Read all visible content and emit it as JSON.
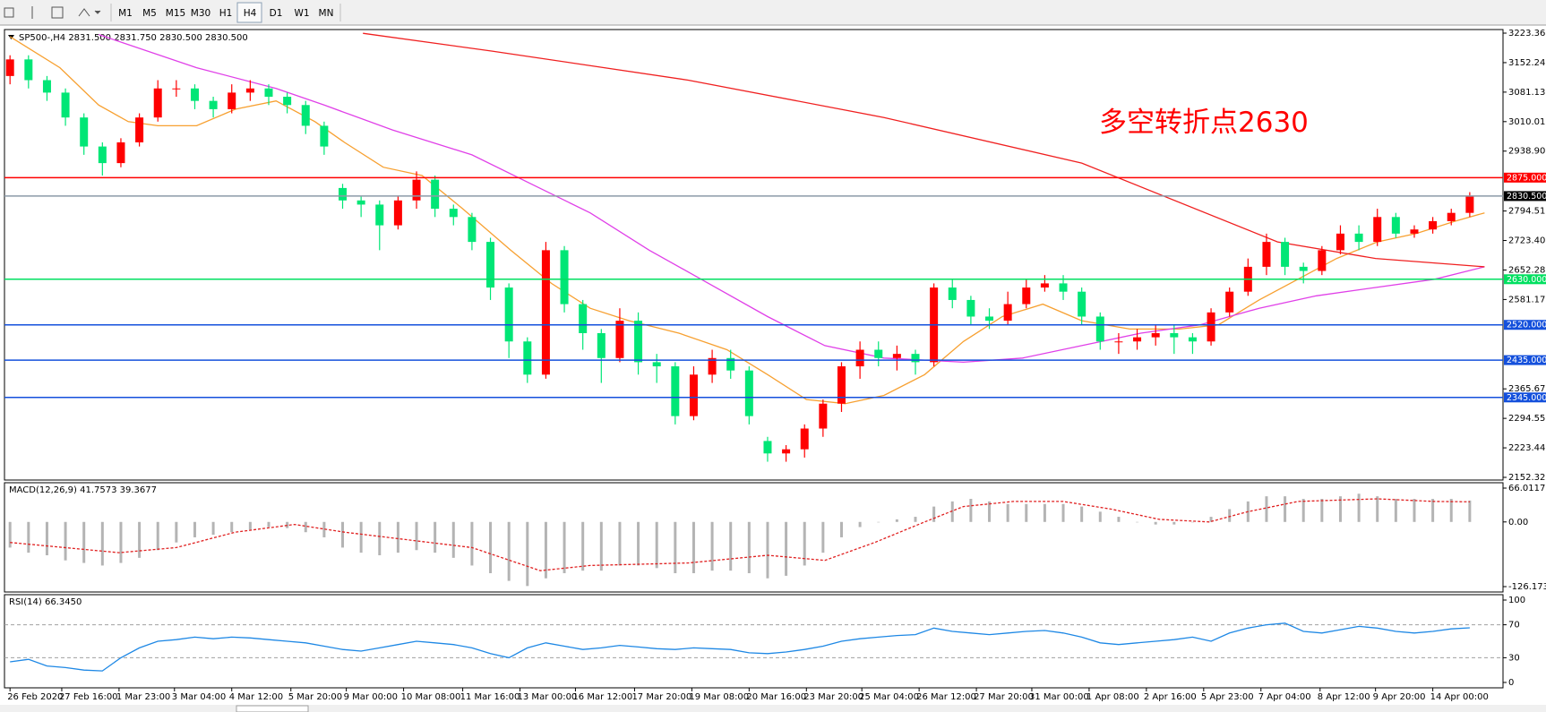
{
  "toolbar": {
    "timeframes": [
      "M1",
      "M5",
      "M15",
      "M30",
      "H1",
      "H4",
      "D1",
      "W1",
      "MN"
    ]
  },
  "chart_data": [
    {
      "type": "candlestick",
      "title": "SP500-,H4 2831.500 2831.750 2830.500 2830.500",
      "annotation": "多空转折点2630",
      "up_color": "#ff0000",
      "down_color": "#00e676",
      "xlim": [
        -0.3,
        80.8
      ],
      "xticks": [
        {
          "value": 0,
          "label": "26 Feb 2020"
        },
        {
          "value": 2.8,
          "label": "27 Feb 16:00"
        },
        {
          "value": 5.9,
          "label": "1 Mar 23:00"
        },
        {
          "value": 8.9,
          "label": "3 Mar 04:00"
        },
        {
          "value": 12,
          "label": "4 Mar 12:00"
        },
        {
          "value": 15.2,
          "label": "5 Mar 20:00"
        },
        {
          "value": 18.2,
          "label": "9 Mar 00:00"
        },
        {
          "value": 21.3,
          "label": "10 Mar 08:00"
        },
        {
          "value": 24.5,
          "label": "11 Mar 16:00"
        },
        {
          "value": 27.6,
          "label": "13 Mar 00:00"
        },
        {
          "value": 30.6,
          "label": "16 Mar 12:00"
        },
        {
          "value": 33.8,
          "label": "17 Mar 20:00"
        },
        {
          "value": 36.9,
          "label": "19 Mar 08:00"
        },
        {
          "value": 40,
          "label": "20 Mar 16:00"
        },
        {
          "value": 43.1,
          "label": "23 Mar 20:00"
        },
        {
          "value": 46.1,
          "label": "25 Mar 04:00"
        },
        {
          "value": 49.2,
          "label": "26 Mar 12:00"
        },
        {
          "value": 52.3,
          "label": "27 Mar 20:00"
        },
        {
          "value": 55.3,
          "label": "31 Mar 00:00"
        },
        {
          "value": 58.4,
          "label": "1 Apr 08:00"
        },
        {
          "value": 61.5,
          "label": "2 Apr 16:00"
        },
        {
          "value": 64.6,
          "label": "5 Apr 23:00"
        },
        {
          "value": 67.7,
          "label": "7 Apr 04:00"
        },
        {
          "value": 70.9,
          "label": "8 Apr 12:00"
        },
        {
          "value": 73.9,
          "label": "9 Apr 20:00"
        },
        {
          "value": 77,
          "label": "14 Apr 00:00"
        }
      ],
      "ylim": [
        2152.325,
        3223.36
      ],
      "yticks": [
        {
          "value": 3223.36,
          "label": "3223.360"
        },
        3152.245,
        {
          "value": 3081.13,
          "label": "3081.130"
        },
        3010.015,
        {
          "value": 2938.9,
          "label": "2938.900"
        },
        2794.515,
        {
          "value": 2723.4,
          "label": "2723.400"
        },
        2652.285,
        {
          "value": 2581.17,
          "label": "2581.170"
        },
        {
          "value": 2365.67,
          "label": "2365.670"
        },
        2294.555,
        {
          "value": 2223.44,
          "label": "2223.440"
        },
        2152.325
      ],
      "levels": [
        {
          "value": 2875,
          "label": "2875.000",
          "color": "#ff0000"
        },
        {
          "value": 2830.5,
          "label": "2830.500",
          "color": "#000000",
          "line_color": "#8c9aa8"
        },
        {
          "value": 2630,
          "label": "2630.000",
          "color": "#00e060"
        },
        {
          "value": 2520,
          "label": "2520.000",
          "color": "#1450dc"
        },
        {
          "value": 2435,
          "label": "2435.000",
          "color": "#1450dc"
        },
        {
          "value": 2345,
          "label": "2345.000",
          "color": "#1450dc"
        }
      ],
      "x": [
        0,
        1,
        2,
        3,
        4,
        5,
        6,
        7,
        8,
        9,
        10,
        11,
        12,
        13,
        14,
        15,
        16,
        17,
        18,
        19,
        20,
        21,
        22,
        23,
        24,
        25,
        26,
        27,
        28,
        29,
        30,
        31,
        32,
        33,
        34,
        35,
        36,
        37,
        38,
        39,
        40,
        41,
        42,
        43,
        44,
        45,
        46,
        47,
        48,
        49,
        50,
        51,
        52,
        53,
        54,
        55,
        56,
        57,
        58,
        59,
        60,
        61,
        62,
        63,
        64,
        65,
        66,
        67,
        68,
        69,
        70,
        71,
        72,
        73,
        74,
        75,
        76,
        77,
        78,
        79
      ],
      "open": [
        3120,
        3160,
        3110,
        3080,
        3020,
        2950,
        2910,
        2960,
        3020,
        3090,
        3090,
        3060,
        3040,
        3080,
        3090,
        3070,
        3050,
        3000,
        2850,
        2820,
        2810,
        2760,
        2820,
        2870,
        2800,
        2780,
        2720,
        2610,
        2480,
        2400,
        2700,
        2570,
        2500,
        2440,
        2530,
        2430,
        2420,
        2300,
        2400,
        2440,
        2410,
        2240,
        2210,
        2220,
        2270,
        2330,
        2420,
        2460,
        2440,
        2450,
        2430,
        2610,
        2580,
        2540,
        2530,
        2570,
        2610,
        2620,
        2600,
        2540,
        2480,
        2480,
        2490,
        2500,
        2490,
        2480,
        2550,
        2600,
        2660,
        2720,
        2660,
        2650,
        2700,
        2740,
        2720,
        2780,
        2740,
        2750,
        2770,
        2790
      ],
      "high": [
        3170,
        3170,
        3120,
        3090,
        3030,
        2960,
        2970,
        3030,
        3110,
        3110,
        3100,
        3070,
        3100,
        3110,
        3100,
        3080,
        3060,
        3010,
        2860,
        2830,
        2820,
        2830,
        2890,
        2880,
        2810,
        2790,
        2730,
        2620,
        2490,
        2720,
        2710,
        2580,
        2510,
        2560,
        2550,
        2450,
        2430,
        2420,
        2460,
        2460,
        2420,
        2250,
        2230,
        2280,
        2340,
        2430,
        2480,
        2480,
        2470,
        2460,
        2620,
        2630,
        2590,
        2560,
        2600,
        2630,
        2640,
        2640,
        2610,
        2550,
        2500,
        2510,
        2520,
        2520,
        2500,
        2560,
        2610,
        2680,
        2740,
        2730,
        2670,
        2710,
        2760,
        2760,
        2800,
        2790,
        2760,
        2780,
        2800,
        2840
      ],
      "low": [
        3100,
        3090,
        3060,
        3000,
        2930,
        2880,
        2900,
        2950,
        3010,
        3070,
        3040,
        3020,
        3030,
        3060,
        3050,
        3030,
        2980,
        2930,
        2800,
        2780,
        2700,
        2750,
        2800,
        2780,
        2760,
        2700,
        2580,
        2440,
        2380,
        2390,
        2550,
        2460,
        2380,
        2430,
        2400,
        2380,
        2280,
        2290,
        2380,
        2390,
        2280,
        2190,
        2190,
        2200,
        2250,
        2310,
        2390,
        2420,
        2410,
        2400,
        2420,
        2560,
        2520,
        2510,
        2520,
        2560,
        2600,
        2580,
        2520,
        2460,
        2450,
        2460,
        2470,
        2450,
        2450,
        2470,
        2540,
        2590,
        2640,
        2640,
        2620,
        2640,
        2690,
        2700,
        2710,
        2730,
        2730,
        2740,
        2760,
        2780
      ],
      "close": [
        3160,
        3110,
        3080,
        3020,
        2950,
        2910,
        2960,
        3020,
        3090,
        3090,
        3060,
        3040,
        3080,
        3090,
        3070,
        3050,
        3000,
        2950,
        2820,
        2810,
        2760,
        2820,
        2870,
        2800,
        2780,
        2720,
        2610,
        2480,
        2400,
        2700,
        2570,
        2500,
        2440,
        2530,
        2430,
        2420,
        2300,
        2400,
        2440,
        2410,
        2300,
        2210,
        2220,
        2270,
        2330,
        2420,
        2460,
        2440,
        2450,
        2430,
        2610,
        2580,
        2540,
        2530,
        2570,
        2610,
        2620,
        2600,
        2540,
        2480,
        2480,
        2490,
        2500,
        2490,
        2480,
        2550,
        2600,
        2660,
        2720,
        2660,
        2650,
        2700,
        2740,
        2720,
        2780,
        2740,
        2750,
        2770,
        2790,
        2830
      ],
      "lines": [
        {
          "color": "#f7a030",
          "x": [
            0,
            2.7,
            4.8,
            6.4,
            8,
            10.1,
            12.2,
            14.4,
            16.5,
            18.1,
            20.2,
            22.3,
            24.5,
            27.1,
            29.3,
            31.4,
            33.5,
            36.2,
            38.8,
            41,
            43.1,
            45.2,
            47.3,
            49.5,
            51.6,
            53.7,
            55.9,
            58,
            60.6,
            63.3,
            65.4,
            67.6,
            69.7,
            71.8,
            74,
            76.1,
            78.2,
            79.8
          ],
          "values": [
            3215,
            3140,
            3050,
            3010,
            3000,
            3000,
            3040,
            3060,
            3010,
            2960,
            2900,
            2880,
            2800,
            2700,
            2620,
            2560,
            2530,
            2500,
            2460,
            2400,
            2340,
            2330,
            2350,
            2400,
            2480,
            2540,
            2570,
            2530,
            2510,
            2510,
            2520,
            2580,
            2630,
            2680,
            2720,
            2740,
            2770,
            2790
          ]
        },
        {
          "color": "#e040e8",
          "x": [
            4.8,
            10.1,
            14.4,
            17,
            20.7,
            25,
            28.2,
            31.4,
            34.6,
            37.8,
            41,
            44.1,
            47.3,
            49.5,
            51.6,
            54.8,
            58,
            61.2,
            64.4,
            67.6,
            70.7,
            73.9,
            77.1,
            79.8
          ],
          "values": [
            3220,
            3140,
            3090,
            3050,
            2990,
            2930,
            2860,
            2790,
            2700,
            2620,
            2540,
            2470,
            2440,
            2435,
            2430,
            2440,
            2470,
            2500,
            2520,
            2560,
            2590,
            2610,
            2630,
            2660
          ]
        },
        {
          "color": "#f02020",
          "x": [
            19.1,
            26.1,
            36.7,
            47.3,
            58,
            68.6,
            73.9,
            79.8
          ],
          "values": [
            3223,
            3180,
            3110,
            3020,
            2910,
            2720,
            2680,
            2660
          ]
        }
      ]
    },
    {
      "type": "bar",
      "title": "MACD(12,26,9) 41.7573 39.3677",
      "color": "#b4b4b4",
      "ylim": [
        -126.173,
        66.0117
      ],
      "yticks": [
        66.0117,
        {
          "value": 0,
          "label": "0.00"
        },
        -126.173
      ],
      "x": [
        0,
        1,
        2,
        3,
        4,
        5,
        6,
        7,
        8,
        9,
        10,
        11,
        12,
        13,
        14,
        15,
        16,
        17,
        18,
        19,
        20,
        21,
        22,
        23,
        24,
        25,
        26,
        27,
        28,
        29,
        30,
        31,
        32,
        33,
        34,
        35,
        36,
        37,
        38,
        39,
        40,
        41,
        42,
        43,
        44,
        45,
        46,
        47,
        48,
        49,
        50,
        51,
        52,
        53,
        54,
        55,
        56,
        57,
        58,
        59,
        60,
        61,
        62,
        63,
        64,
        65,
        66,
        67,
        68,
        69,
        70,
        71,
        72,
        73,
        74,
        75,
        76,
        77,
        78,
        79
      ],
      "values": [
        -50,
        -60,
        -65,
        -75,
        -80,
        -85,
        -80,
        -70,
        -55,
        -40,
        -30,
        -25,
        -20,
        -15,
        -10,
        -12,
        -20,
        -30,
        -50,
        -60,
        -65,
        -60,
        -55,
        -60,
        -70,
        -85,
        -100,
        -115,
        -125,
        -110,
        -100,
        -95,
        -95,
        -85,
        -85,
        -90,
        -100,
        -100,
        -95,
        -95,
        -100,
        -110,
        -105,
        -85,
        -60,
        -30,
        -10,
        0,
        5,
        10,
        30,
        40,
        45,
        40,
        35,
        35,
        35,
        35,
        30,
        20,
        10,
        0,
        -5,
        -5,
        0,
        10,
        25,
        40,
        50,
        50,
        45,
        45,
        50,
        55,
        50,
        45,
        45,
        45,
        45,
        41.7573
      ],
      "lines": [
        {
          "color": "#e02020",
          "x": [
            0,
            5.9,
            9,
            12.2,
            15.4,
            18.1,
            25,
            28.7,
            31.4,
            36.7,
            41,
            44.1,
            46.8,
            49.5,
            51.6,
            54.3,
            57,
            59.6,
            62.2,
            64.9,
            67,
            69.7,
            74,
            77.1,
            79
          ],
          "values": [
            -40,
            -60,
            -50,
            -20,
            -5,
            -20,
            -50,
            -95,
            -85,
            -80,
            -65,
            -75,
            -40,
            0,
            30,
            40,
            40,
            25,
            5,
            0,
            20,
            40,
            45,
            40,
            39.3677
          ]
        }
      ]
    },
    {
      "type": "line",
      "title": "RSI(14) 66.3450",
      "color": "#1e88e5",
      "ylim": [
        0,
        100
      ],
      "yticks": [
        100,
        70,
        30,
        0
      ],
      "x": [
        0,
        1,
        2,
        3,
        4,
        5,
        6,
        7,
        8,
        9,
        10,
        11,
        12,
        13,
        14,
        15,
        16,
        17,
        18,
        19,
        20,
        21,
        22,
        23,
        24,
        25,
        26,
        27,
        28,
        29,
        30,
        31,
        32,
        33,
        34,
        35,
        36,
        37,
        38,
        39,
        40,
        41,
        42,
        43,
        44,
        45,
        46,
        47,
        48,
        49,
        50,
        51,
        52,
        53,
        54,
        55,
        56,
        57,
        58,
        59,
        60,
        61,
        62,
        63,
        64,
        65,
        66,
        67,
        68,
        69,
        70,
        71,
        72,
        73,
        74,
        75,
        76,
        77,
        78,
        79
      ],
      "values": [
        25,
        28,
        20,
        18,
        15,
        14,
        30,
        42,
        50,
        52,
        55,
        53,
        55,
        54,
        52,
        50,
        48,
        44,
        40,
        38,
        42,
        46,
        50,
        48,
        46,
        42,
        35,
        30,
        42,
        48,
        44,
        40,
        42,
        45,
        43,
        41,
        40,
        42,
        41,
        40,
        36,
        35,
        37,
        40,
        44,
        50,
        53,
        55,
        57,
        58,
        66,
        62,
        60,
        58,
        60,
        62,
        63,
        60,
        55,
        48,
        46,
        48,
        50,
        52,
        55,
        50,
        60,
        66,
        70,
        72,
        62,
        60,
        64,
        68,
        66,
        62,
        60,
        62,
        65,
        66.345
      ]
    }
  ]
}
